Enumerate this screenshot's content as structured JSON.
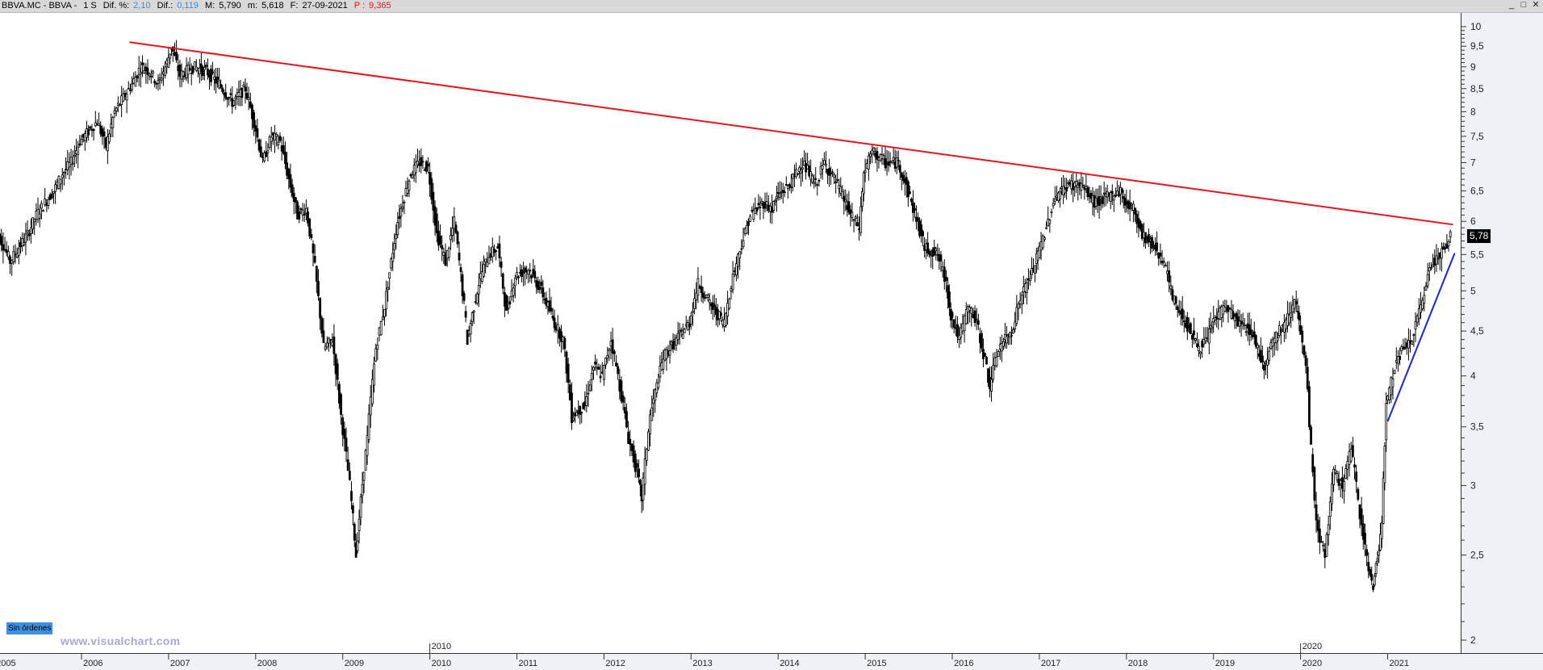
{
  "header": {
    "symbol": "BBVA.MC - BBVA -",
    "timeframe": "1 S",
    "dif_pct_label": "Dif. %:",
    "dif_pct_value": "2,10",
    "dif_label": "Dif.:",
    "dif_value": "0,119",
    "max_label": "M:",
    "max_value": "5,790",
    "min_label": "m:",
    "min_value": "5,618",
    "date_label": "F:",
    "date_value": "27-09-2021",
    "p_label": "P :",
    "p_value": "9,365"
  },
  "window_controls": {
    "minimize": "_",
    "maximize": "□",
    "close": "✕"
  },
  "last_price_tag": "5,78",
  "orders_badge": "Sin órdenes",
  "watermark": "www.visualchart.com",
  "colors": {
    "resistance_line": "#e8141c",
    "support_line": "#1a22e6",
    "candles": "#000000",
    "axis_bg": "#eef1f5",
    "orders_badge": "#3d8fe0"
  },
  "chart_data": {
    "type": "candlestick",
    "title": "BBVA.MC - BBVA - 1 S (weekly)",
    "xlabel": "",
    "ylabel": "",
    "y_scale": "log",
    "ylim": [
      1.9,
      10.3
    ],
    "y_ticks": [
      "10",
      "9,5",
      "9",
      "8,5",
      "8",
      "7,5",
      "7",
      "6,5",
      "6",
      "5,5",
      "5",
      "4,5",
      "4",
      "3,5",
      "3",
      "2,5",
      "2"
    ],
    "x_ticks": [
      "2005",
      "2006",
      "2007",
      "2008",
      "2009",
      "2010",
      "2011",
      "2012",
      "2013",
      "2014",
      "2015",
      "2016",
      "2017",
      "2018",
      "2019",
      "2020",
      "2021"
    ],
    "x_upper_markers": [
      "2010",
      "2020"
    ],
    "last_price": 5.78,
    "series": [
      {
        "name": "BBVA close (approx.)",
        "points": [
          [
            2005.0,
            5.9
          ],
          [
            2005.1,
            5.7
          ],
          [
            2005.2,
            5.4
          ],
          [
            2005.3,
            5.6
          ],
          [
            2005.4,
            5.8
          ],
          [
            2005.5,
            6.1
          ],
          [
            2005.6,
            6.3
          ],
          [
            2005.7,
            6.5
          ],
          [
            2005.8,
            6.8
          ],
          [
            2005.9,
            7.0
          ],
          [
            2006.0,
            7.4
          ],
          [
            2006.1,
            7.6
          ],
          [
            2006.2,
            7.8
          ],
          [
            2006.3,
            7.3
          ],
          [
            2006.4,
            8.0
          ],
          [
            2006.5,
            8.3
          ],
          [
            2006.6,
            8.6
          ],
          [
            2006.7,
            9.0
          ],
          [
            2006.8,
            8.9
          ],
          [
            2006.9,
            8.6
          ],
          [
            2007.0,
            9.1
          ],
          [
            2007.05,
            9.5
          ],
          [
            2007.15,
            8.8
          ],
          [
            2007.3,
            9.0
          ],
          [
            2007.45,
            8.9
          ],
          [
            2007.6,
            8.6
          ],
          [
            2007.75,
            8.2
          ],
          [
            2007.9,
            8.5
          ],
          [
            2008.0,
            7.8
          ],
          [
            2008.1,
            7.0
          ],
          [
            2008.2,
            7.5
          ],
          [
            2008.3,
            7.4
          ],
          [
            2008.4,
            6.7
          ],
          [
            2008.5,
            6.1
          ],
          [
            2008.6,
            6.2
          ],
          [
            2008.7,
            5.3
          ],
          [
            2008.8,
            4.3
          ],
          [
            2008.9,
            4.4
          ],
          [
            2009.0,
            3.6
          ],
          [
            2009.1,
            3.0
          ],
          [
            2009.17,
            2.5
          ],
          [
            2009.3,
            3.4
          ],
          [
            2009.4,
            4.3
          ],
          [
            2009.5,
            4.8
          ],
          [
            2009.65,
            6.0
          ],
          [
            2009.8,
            6.8
          ],
          [
            2009.9,
            7.0
          ],
          [
            2010.0,
            6.9
          ],
          [
            2010.1,
            5.8
          ],
          [
            2010.2,
            5.4
          ],
          [
            2010.3,
            6.0
          ],
          [
            2010.45,
            4.4
          ],
          [
            2010.6,
            5.2
          ],
          [
            2010.7,
            5.5
          ],
          [
            2010.8,
            5.6
          ],
          [
            2010.9,
            4.7
          ],
          [
            2011.0,
            5.2
          ],
          [
            2011.15,
            5.3
          ],
          [
            2011.3,
            5.0
          ],
          [
            2011.45,
            4.6
          ],
          [
            2011.55,
            4.4
          ],
          [
            2011.65,
            3.6
          ],
          [
            2011.8,
            3.7
          ],
          [
            2011.9,
            4.1
          ],
          [
            2012.0,
            4.0
          ],
          [
            2012.1,
            4.4
          ],
          [
            2012.2,
            3.9
          ],
          [
            2012.3,
            3.4
          ],
          [
            2012.4,
            3.1
          ],
          [
            2012.45,
            2.9
          ],
          [
            2012.55,
            3.6
          ],
          [
            2012.7,
            4.2
          ],
          [
            2012.85,
            4.4
          ],
          [
            2013.0,
            4.6
          ],
          [
            2013.1,
            5.1
          ],
          [
            2013.25,
            4.8
          ],
          [
            2013.4,
            4.6
          ],
          [
            2013.5,
            5.2
          ],
          [
            2013.7,
            6.1
          ],
          [
            2013.85,
            6.3
          ],
          [
            2013.95,
            6.2
          ],
          [
            2014.0,
            6.4
          ],
          [
            2014.15,
            6.6
          ],
          [
            2014.3,
            7.0
          ],
          [
            2014.45,
            6.6
          ],
          [
            2014.55,
            7.0
          ],
          [
            2014.7,
            6.6
          ],
          [
            2014.85,
            6.1
          ],
          [
            2014.95,
            5.9
          ],
          [
            2015.0,
            6.8
          ],
          [
            2015.1,
            7.2
          ],
          [
            2015.25,
            7.0
          ],
          [
            2015.4,
            7.0
          ],
          [
            2015.55,
            6.3
          ],
          [
            2015.7,
            5.6
          ],
          [
            2015.85,
            5.5
          ],
          [
            2015.95,
            5.1
          ],
          [
            2016.0,
            4.7
          ],
          [
            2016.1,
            4.4
          ],
          [
            2016.2,
            4.8
          ],
          [
            2016.3,
            4.6
          ],
          [
            2016.45,
            3.9
          ],
          [
            2016.55,
            4.3
          ],
          [
            2016.7,
            4.5
          ],
          [
            2016.8,
            4.9
          ],
          [
            2016.95,
            5.3
          ],
          [
            2017.0,
            5.5
          ],
          [
            2017.1,
            5.9
          ],
          [
            2017.2,
            6.4
          ],
          [
            2017.35,
            6.6
          ],
          [
            2017.5,
            6.6
          ],
          [
            2017.65,
            6.3
          ],
          [
            2017.8,
            6.4
          ],
          [
            2017.95,
            6.5
          ],
          [
            2018.0,
            6.3
          ],
          [
            2018.1,
            6.2
          ],
          [
            2018.2,
            5.8
          ],
          [
            2018.35,
            5.6
          ],
          [
            2018.45,
            5.4
          ],
          [
            2018.55,
            4.9
          ],
          [
            2018.7,
            4.6
          ],
          [
            2018.85,
            4.3
          ],
          [
            2018.95,
            4.4
          ],
          [
            2019.0,
            4.6
          ],
          [
            2019.15,
            4.8
          ],
          [
            2019.3,
            4.6
          ],
          [
            2019.45,
            4.5
          ],
          [
            2019.6,
            4.1
          ],
          [
            2019.7,
            4.4
          ],
          [
            2019.85,
            4.6
          ],
          [
            2019.95,
            4.9
          ],
          [
            2020.0,
            4.6
          ],
          [
            2020.1,
            3.9
          ],
          [
            2020.12,
            3.5
          ],
          [
            2020.2,
            2.7
          ],
          [
            2020.3,
            2.5
          ],
          [
            2020.4,
            3.1
          ],
          [
            2020.5,
            3.0
          ],
          [
            2020.6,
            3.3
          ],
          [
            2020.7,
            2.8
          ],
          [
            2020.8,
            2.4
          ],
          [
            2020.85,
            2.3
          ],
          [
            2020.9,
            2.5
          ],
          [
            2020.95,
            2.7
          ],
          [
            2021.0,
            3.7
          ],
          [
            2021.1,
            4.1
          ],
          [
            2021.2,
            4.3
          ],
          [
            2021.3,
            4.4
          ],
          [
            2021.4,
            4.8
          ],
          [
            2021.5,
            5.3
          ],
          [
            2021.6,
            5.5
          ],
          [
            2021.7,
            5.6
          ],
          [
            2021.74,
            5.78
          ]
        ]
      }
    ],
    "annotations": [
      {
        "type": "trendline",
        "name": "resistance",
        "color": "#e8141c",
        "from": [
          2006.55,
          9.6
        ],
        "to": [
          2021.75,
          5.95
        ]
      },
      {
        "type": "trendline",
        "name": "support",
        "color": "#1a22e6",
        "from": [
          2021.0,
          3.55
        ],
        "to": [
          2021.77,
          5.52
        ]
      }
    ]
  }
}
